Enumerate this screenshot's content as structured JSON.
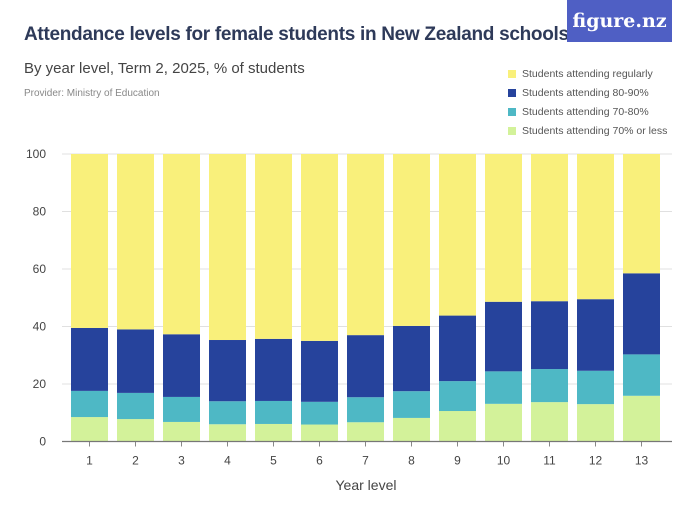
{
  "header": {
    "title": "Attendance levels for female students in New Zealand schools",
    "subtitle": "By year level, Term 2, 2025, % of students",
    "provider": "Provider: Ministry of Education",
    "logo_text": "figure.nz"
  },
  "colors": {
    "regularly": "#f9f07b",
    "80-90": "#26439c",
    "70-80": "#4eb8c5",
    "70-less": "#d3f29a",
    "logo": "#4f5fc4"
  },
  "chart_data": {
    "type": "bar",
    "stacked": true,
    "title": "Attendance levels for female students in New Zealand schools",
    "subtitle": "By year level, Term 2, 2025, % of students",
    "xlabel": "Year level",
    "ylabel": "",
    "ylim": [
      0,
      100
    ],
    "yticks": [
      0,
      20,
      40,
      60,
      80,
      100
    ],
    "grid": true,
    "legend_position": "top-right",
    "categories": [
      "1",
      "2",
      "3",
      "4",
      "5",
      "6",
      "7",
      "8",
      "9",
      "10",
      "11",
      "12",
      "13"
    ],
    "series": [
      {
        "name": "Students attending 70% or less",
        "color": "#d3f29a",
        "values": [
          8.5,
          7.8,
          6.8,
          6.0,
          6.1,
          5.9,
          6.7,
          8.2,
          10.6,
          13.1,
          13.7,
          13.0,
          15.9
        ]
      },
      {
        "name": "Students attending 70-80%",
        "color": "#4eb8c5",
        "values": [
          9.1,
          9.1,
          8.7,
          8.0,
          8.0,
          7.9,
          8.7,
          9.3,
          10.4,
          11.3,
          11.5,
          11.6,
          14.4
        ]
      },
      {
        "name": "Students attending 80-90%",
        "color": "#26439c",
        "values": [
          21.9,
          22.1,
          21.8,
          21.3,
          21.6,
          21.2,
          21.6,
          22.7,
          22.8,
          24.2,
          23.6,
          24.9,
          28.2
        ]
      },
      {
        "name": "Students attending regularly",
        "color": "#f9f07b",
        "values": [
          60.5,
          61.0,
          62.7,
          64.7,
          64.3,
          65.0,
          63.0,
          59.8,
          56.2,
          51.4,
          51.2,
          50.5,
          41.5
        ]
      }
    ],
    "legend_order": [
      3,
      2,
      1,
      0
    ]
  }
}
